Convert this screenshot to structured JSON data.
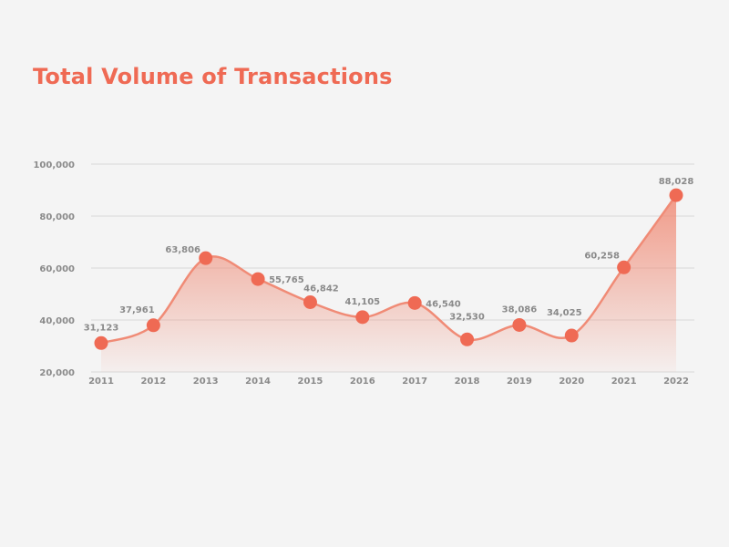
{
  "colors": {
    "accent": "#ef6a54",
    "line": "#f08b76",
    "grid": "#d9d9d9",
    "text": "#8a8a8a",
    "background": "#f4f4f4"
  },
  "chart_data": {
    "type": "area",
    "title": "Total Volume of Transactions",
    "xlabel": "",
    "ylabel": "",
    "categories": [
      "2011",
      "2012",
      "2013",
      "2014",
      "2015",
      "2016",
      "2017",
      "2018",
      "2019",
      "2020",
      "2021",
      "2022"
    ],
    "values": [
      31123,
      37961,
      63806,
      55765,
      46842,
      41105,
      46540,
      32530,
      38086,
      34025,
      60258,
      88028
    ],
    "data_labels": [
      "31,123",
      "37,961",
      "63,806",
      "55,765",
      "46,842",
      "41,105",
      "46,540",
      "32,530",
      "38,086",
      "34,025",
      "60,258",
      "88,028"
    ],
    "y_ticks": [
      "20,000",
      "40,000",
      "60,000",
      "80,000",
      "100,000"
    ],
    "y_tick_values": [
      20000,
      40000,
      60000,
      80000,
      100000
    ],
    "ylim": [
      20000,
      100000
    ],
    "grid": true,
    "legend": "none",
    "smooth": true
  }
}
